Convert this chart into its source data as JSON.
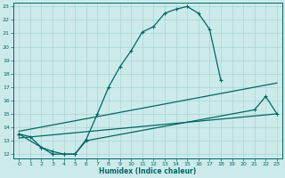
{
  "xlabel": "Humidex (Indice chaleur)",
  "bg_color": "#cceaea",
  "grid_color": "#aad4d4",
  "line_color": "#006666",
  "xlim": [
    -0.5,
    23.5
  ],
  "ylim": [
    11.7,
    23.3
  ],
  "yticks": [
    12,
    13,
    14,
    15,
    16,
    17,
    18,
    19,
    20,
    21,
    22,
    23
  ],
  "xticks": [
    0,
    1,
    2,
    3,
    4,
    5,
    6,
    7,
    8,
    9,
    10,
    11,
    12,
    13,
    14,
    15,
    16,
    17,
    18,
    19,
    20,
    21,
    22,
    23
  ],
  "line1_x": [
    0,
    1,
    2,
    3,
    4,
    5,
    6,
    7,
    8,
    9,
    10,
    11,
    12,
    13,
    14,
    15,
    16,
    17,
    18
  ],
  "line1_y": [
    13.5,
    13.3,
    12.5,
    12.0,
    12.0,
    12.0,
    13.1,
    15.0,
    17.0,
    18.5,
    19.7,
    21.1,
    21.5,
    22.5,
    22.8,
    23.0,
    22.5,
    21.3,
    17.5
  ],
  "line2_x": [
    0,
    2,
    3,
    4,
    5,
    6,
    21,
    22,
    23
  ],
  "line2_y": [
    13.5,
    12.5,
    12.2,
    12.0,
    12.0,
    13.0,
    15.3,
    16.3,
    15.0
  ],
  "line3_x": [
    0,
    23
  ],
  "line3_y": [
    13.2,
    15.0
  ],
  "line4_x": [
    0,
    23
  ],
  "line4_y": [
    13.7,
    17.3
  ]
}
